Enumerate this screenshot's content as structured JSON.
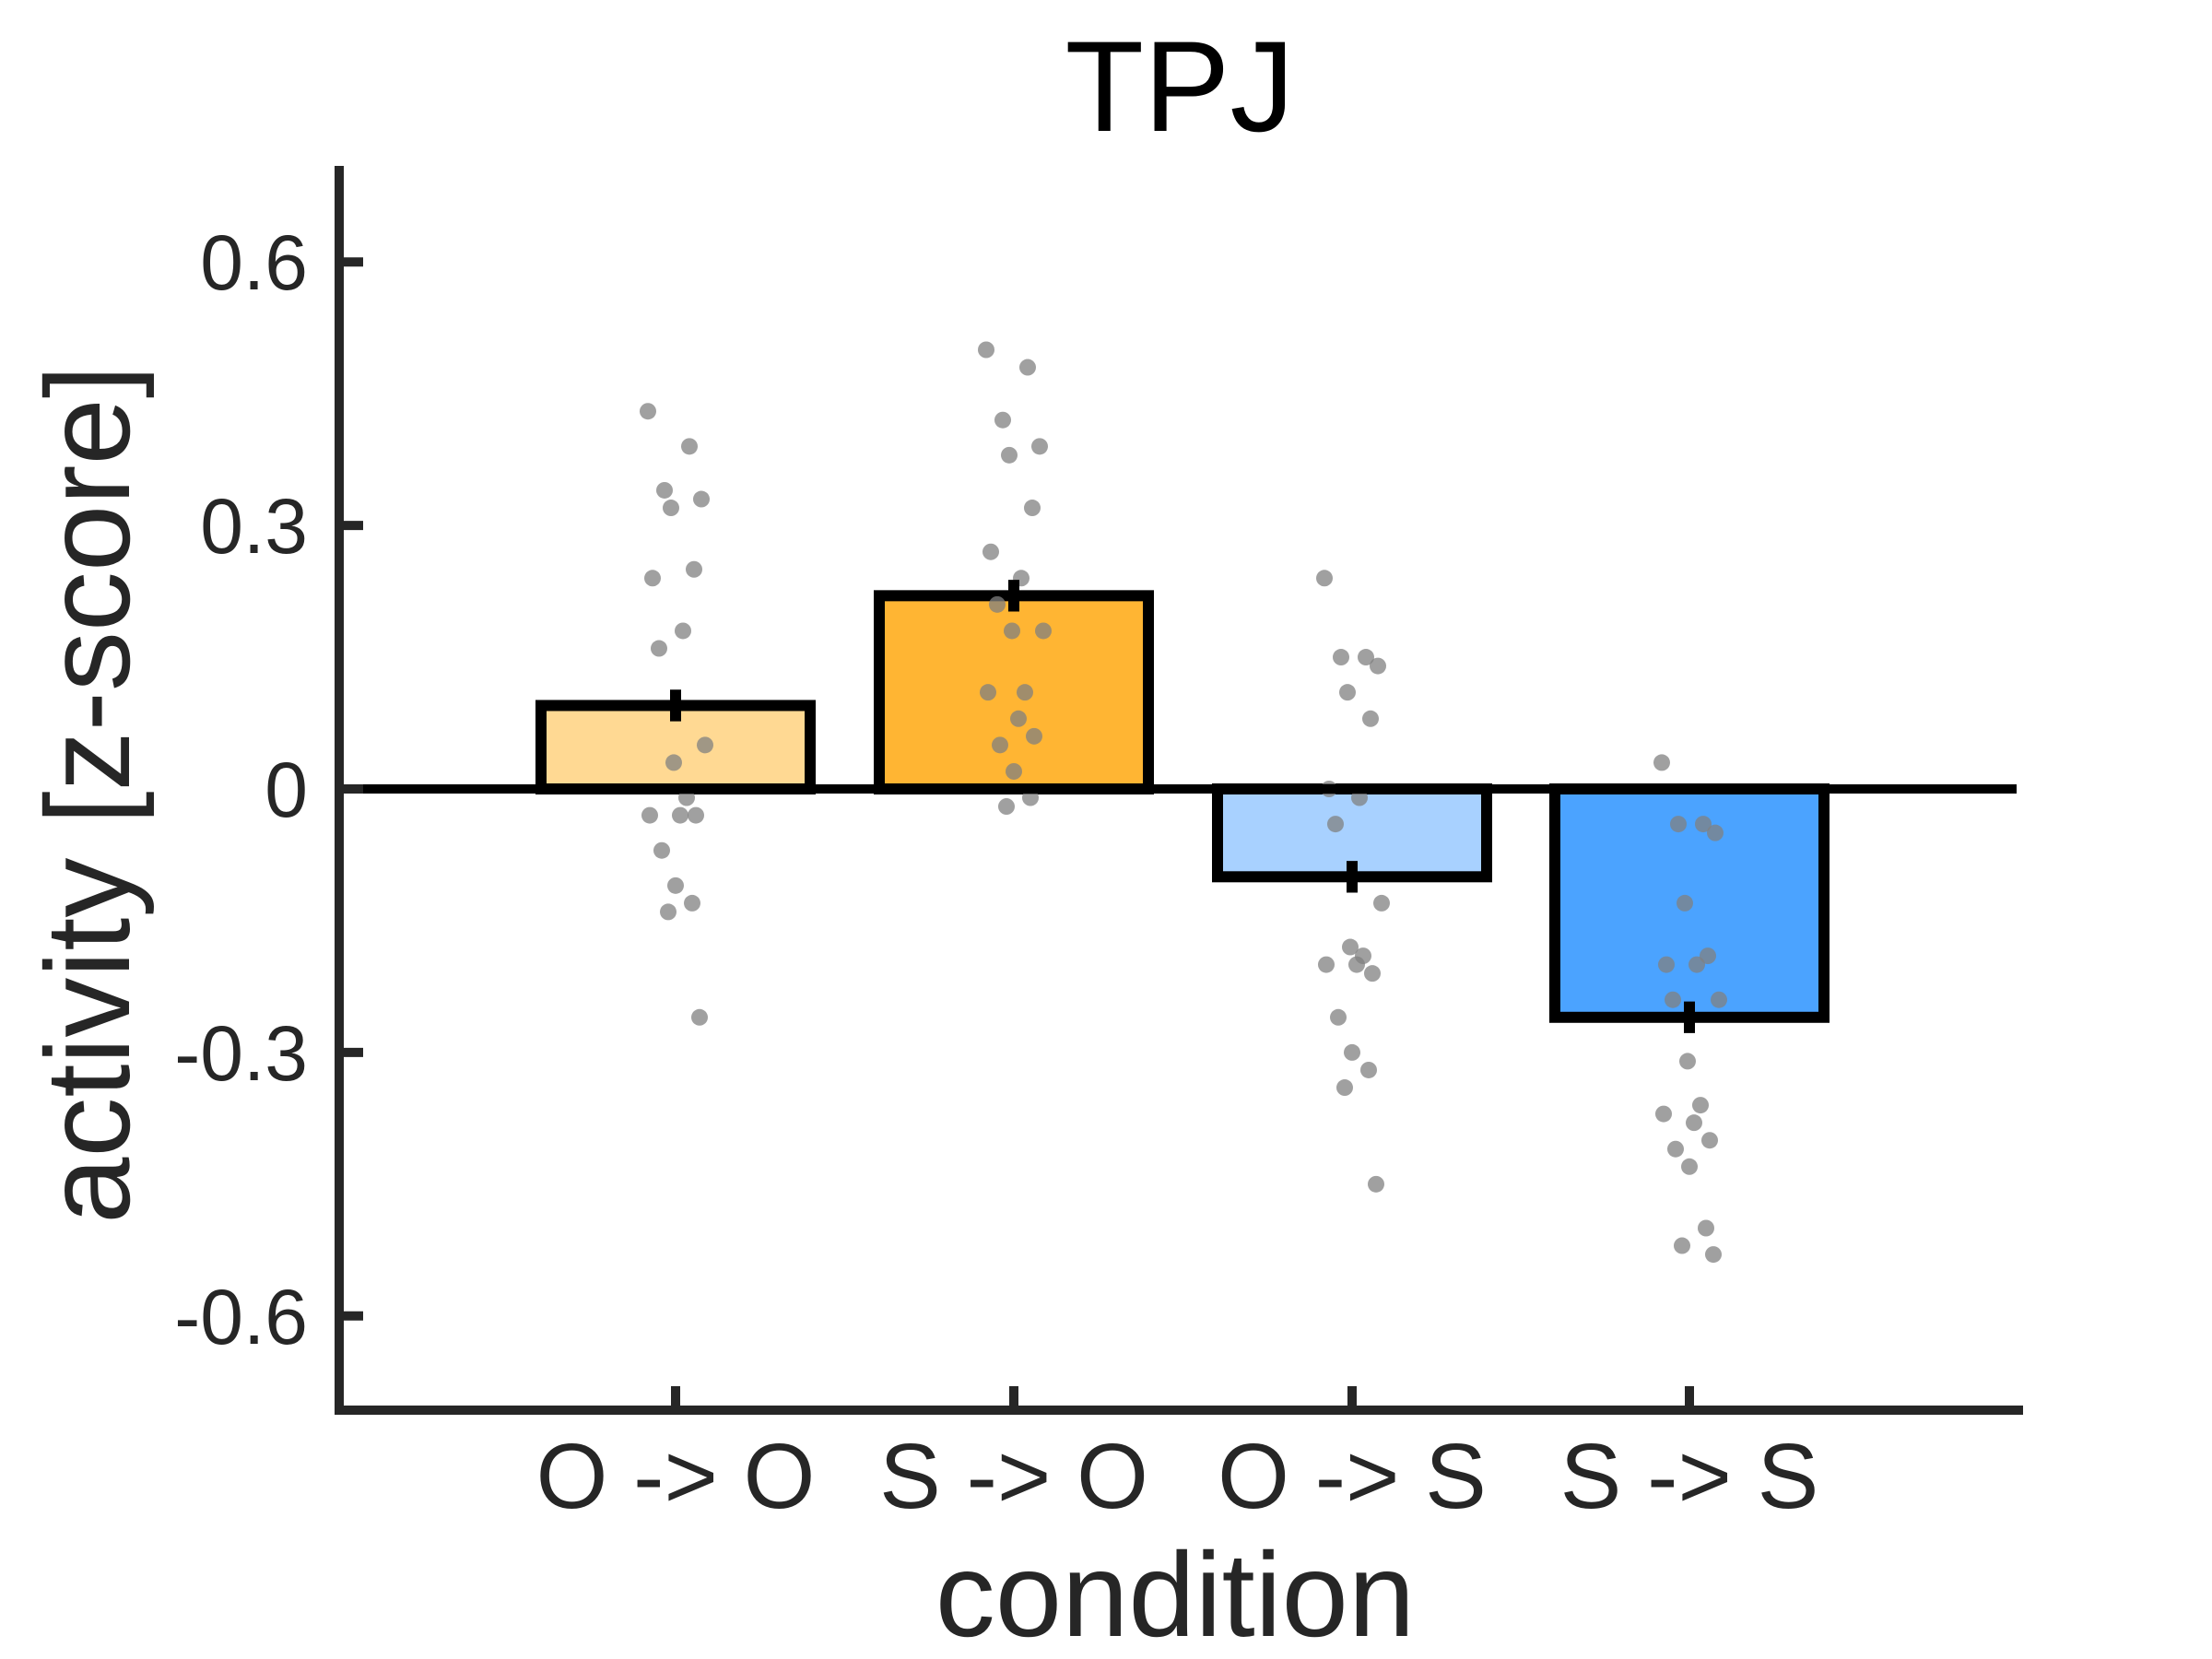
{
  "chart_data": {
    "type": "bar",
    "title": "TPJ",
    "xlabel": "condition",
    "ylabel": "activity [z-score]",
    "ylim": [
      -0.7,
      0.7
    ],
    "yticks": [
      -0.6,
      -0.3,
      0,
      0.3,
      0.6
    ],
    "ytick_labels": [
      "-0.6",
      "-0.3",
      "0",
      "0.3",
      "0.6"
    ],
    "categories": [
      "O -> O",
      "S -> O",
      "O -> S",
      "S -> S"
    ],
    "values": [
      0.095,
      0.22,
      -0.1,
      -0.26
    ],
    "errors": [
      0.018,
      0.018,
      0.018,
      0.018
    ],
    "colors": [
      "#FFD993",
      "#FFB533",
      "#A8D1FF",
      "#4BA3FF"
    ],
    "points": [
      [
        0.43,
        0.39,
        0.34,
        0.33,
        0.32,
        0.25,
        0.24,
        0.18,
        0.16,
        0.05,
        0.03,
        -0.01,
        -0.03,
        -0.03,
        -0.03,
        -0.07,
        -0.11,
        -0.13,
        -0.14,
        -0.26
      ],
      [
        0.5,
        0.48,
        0.42,
        0.39,
        0.38,
        0.32,
        0.27,
        0.24,
        0.21,
        0.18,
        0.18,
        0.11,
        0.11,
        0.08,
        0.06,
        0.05,
        0.02,
        -0.01,
        -0.02
      ],
      [
        0.24,
        0.15,
        0.15,
        0.14,
        0.11,
        0.08,
        0.0,
        -0.01,
        -0.04,
        -0.13,
        -0.18,
        -0.19,
        -0.2,
        -0.2,
        -0.21,
        -0.26,
        -0.3,
        -0.32,
        -0.34,
        -0.45
      ],
      [
        0.03,
        -0.04,
        -0.04,
        -0.05,
        -0.13,
        -0.19,
        -0.2,
        -0.2,
        -0.24,
        -0.24,
        -0.31,
        -0.36,
        -0.37,
        -0.38,
        -0.4,
        -0.41,
        -0.43,
        -0.5,
        -0.52,
        -0.53
      ]
    ],
    "point_color": "#808080",
    "grid": false,
    "legend": "none"
  }
}
